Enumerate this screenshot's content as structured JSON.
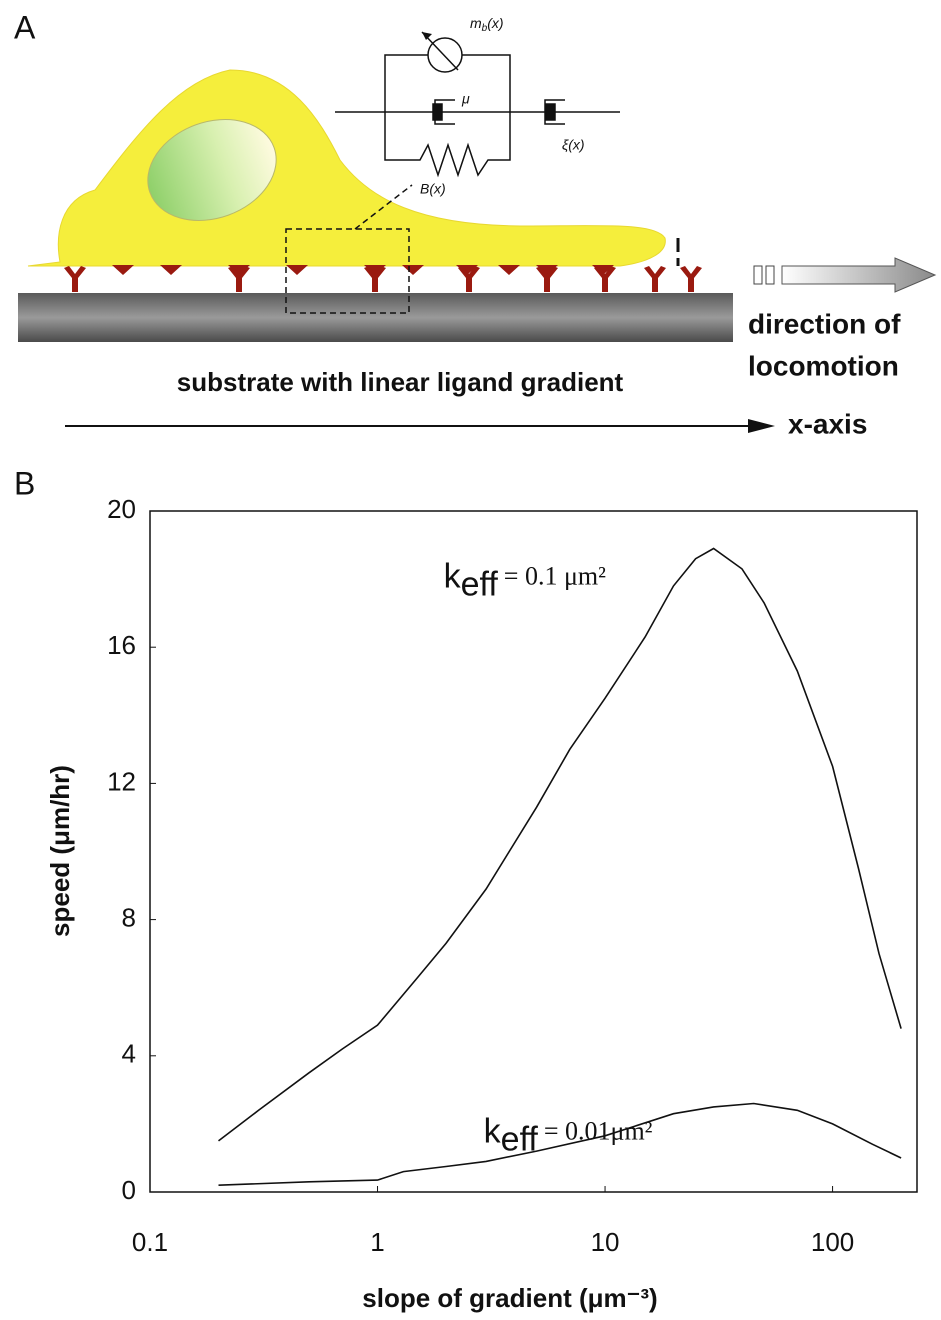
{
  "panel_a": {
    "label": "A",
    "direction": [
      "direction of",
      "locomotion"
    ],
    "substrate": "substrate with linear ligand gradient",
    "axis": "x-axis",
    "circuit": {
      "motor": "m",
      "motor_sub": "b",
      "motor_arg": "(x)",
      "viscosity": "μ",
      "friction": "ξ(x)",
      "spring": "B(x)"
    }
  },
  "chart_data": {
    "type": "line",
    "panel_label": "B",
    "xlabel": "slope of gradient (μm⁻³)",
    "ylabel": "speed (μm/hr)",
    "xscale": "log",
    "xlim": [
      0.1,
      235
    ],
    "ylim": [
      0,
      20
    ],
    "xticks": [
      0.1,
      1,
      10,
      100
    ],
    "yticks": [
      0,
      4,
      8,
      12,
      16,
      20
    ],
    "grid": false,
    "series": [
      {
        "color": "#111111",
        "x": [
          0.2,
          0.3,
          0.5,
          0.7,
          1,
          1.5,
          2,
          3,
          5,
          7,
          10,
          15,
          20,
          25,
          30,
          40,
          50,
          70,
          100,
          130,
          160,
          200
        ],
        "values": [
          1.5,
          2.4,
          3.5,
          4.2,
          4.9,
          6.3,
          7.3,
          8.9,
          11.3,
          13,
          14.5,
          16.3,
          17.8,
          18.6,
          18.9,
          18.3,
          17.3,
          15.3,
          12.5,
          9.5,
          7,
          4.8
        ]
      },
      {
        "color": "#111111",
        "x": [
          0.2,
          0.5,
          1,
          1.3,
          2,
          3,
          5,
          10,
          20,
          30,
          45,
          70,
          100,
          150,
          200
        ],
        "values": [
          0.2,
          0.3,
          0.35,
          0.6,
          0.75,
          0.9,
          1.2,
          1.65,
          2.3,
          2.5,
          2.6,
          2.4,
          2.0,
          1.4,
          1.0
        ]
      }
    ],
    "annotations": [
      {
        "symbol": "k",
        "subscript": "eff",
        "text": "= 0.1 μm²"
      },
      {
        "symbol": "k",
        "subscript": "eff",
        "text": "= 0.01μm²"
      }
    ]
  }
}
